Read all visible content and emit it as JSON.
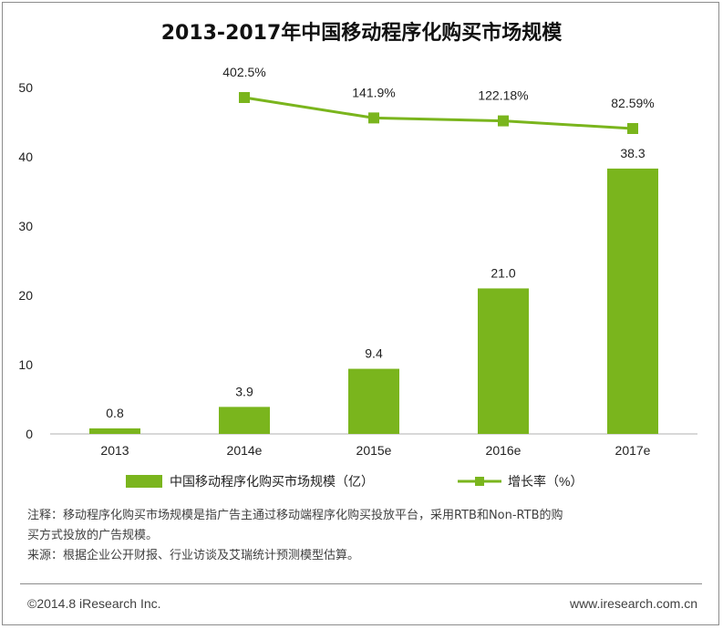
{
  "chart_data": {
    "type": "bar+line",
    "title": "2013-2017年中国移动程序化购买市场规模",
    "categories": [
      "2013",
      "2014e",
      "2015e",
      "2016e",
      "2017e"
    ],
    "series": [
      {
        "name": "中国移动程序化购买市场规模（亿）",
        "type": "bar",
        "values": [
          0.8,
          3.9,
          9.4,
          21.0,
          38.3
        ],
        "labels": [
          "0.8",
          "3.9",
          "9.4",
          "21.0",
          "38.3"
        ]
      },
      {
        "name": "增长率（%）",
        "type": "line",
        "values": [
          null,
          402.5,
          141.9,
          122.18,
          82.59
        ],
        "labels": [
          "",
          "402.5%",
          "141.9%",
          "122.18%",
          "82.59%"
        ]
      }
    ],
    "ylim": [
      0,
      50
    ],
    "yticks": [
      "0",
      "10",
      "20",
      "30",
      "40",
      "50"
    ],
    "legend_position": "bottom",
    "colors": {
      "bar": "#7ab51d",
      "line": "#7ab51d"
    }
  },
  "notes": {
    "note_line1": "注释：移动程序化购买市场规模是指广告主通过移动端程序化购买投放平台，采用RTB和Non-RTB的购",
    "note_line2": "买方式投放的广告规模。",
    "source": "来源：根据企业公开财报、行业访谈及艾瑞统计预测模型估算。"
  },
  "footer": {
    "copyright": "©2014.8 iResearch Inc.",
    "website": "www.iresearch.com.cn"
  }
}
